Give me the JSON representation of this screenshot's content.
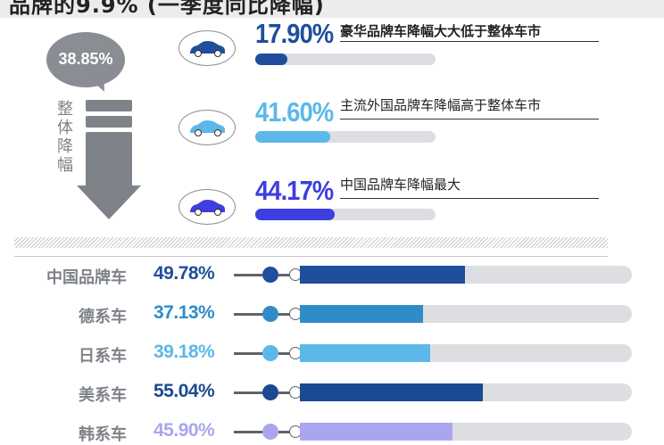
{
  "title_fragment": "品牌的9.9% (一季度同比降幅)",
  "total_decline": {
    "value": "38.85%",
    "label": [
      "整",
      "体",
      "降",
      "幅"
    ]
  },
  "highlights": [
    {
      "value": "17.90%",
      "fraction": 0.179,
      "text": "豪华品牌车降幅大大低于整体车市",
      "color": "#1f4e9c",
      "icon": "car-icon"
    },
    {
      "value": "41.60%",
      "fraction": 0.416,
      "text": "主流外国品牌车降幅高于整体车市",
      "color": "#5bb8e8",
      "icon": "car-icon"
    },
    {
      "value": "44.17%",
      "fraction": 0.4417,
      "text": "中国品牌车降幅最大",
      "color": "#3c3ee0",
      "icon": "car-icon"
    }
  ],
  "chart_data": {
    "type": "bar",
    "categories": [
      "中国品牌车",
      "德系车",
      "日系车",
      "美系车",
      "韩系车"
    ],
    "values": [
      49.78,
      37.13,
      39.18,
      55.04,
      45.9
    ],
    "labels": [
      "49.78%",
      "37.13%",
      "39.18%",
      "55.04%",
      "45.90%"
    ],
    "colors": [
      "#1f4e9c",
      "#2f8cc8",
      "#5bb8e8",
      "#1b4a92",
      "#a9a6ee"
    ],
    "ylim": [
      0,
      100
    ]
  }
}
